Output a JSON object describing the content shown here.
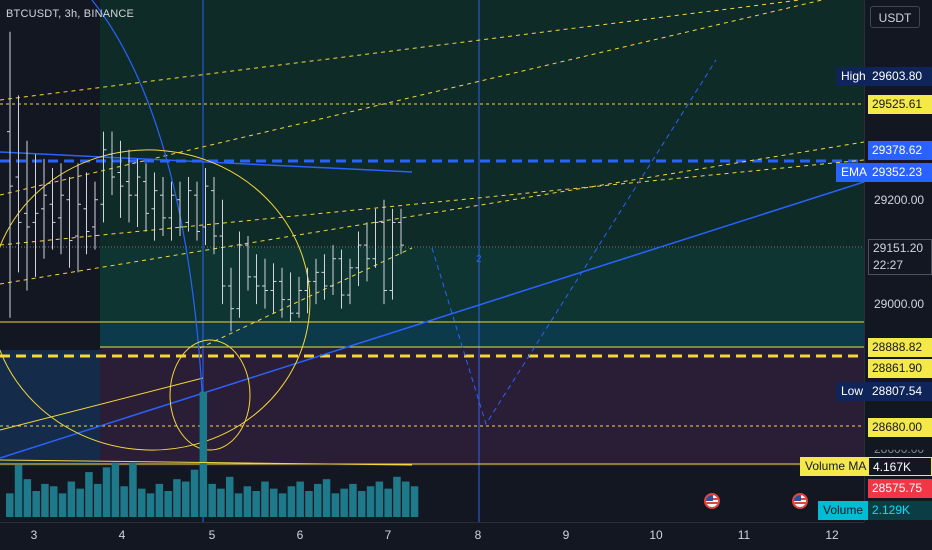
{
  "header": {
    "symbol": "BTCUSDT, 3h, BINANCE"
  },
  "currency": "USDT",
  "colors": {
    "background": "#131722",
    "accent_blue": "#2962ff",
    "yellow": "#f5d73b",
    "volume": "#1e7a8a",
    "red": "#f23645",
    "green_zone": "#0f3a33",
    "purple_zone": "#2c1d3a"
  },
  "axis_labels": {
    "high": {
      "name": "High",
      "value": "29603.80"
    },
    "level_1": "29525.61",
    "level_2": "29378.62",
    "ema": {
      "name": "EMA",
      "value": "29352.23"
    },
    "price_29200": "29200.00",
    "current": {
      "value": "29151.20",
      "countdown": "22:27"
    },
    "price_29000": "29000.00",
    "level_3": "28888.82",
    "level_4": "28861.90",
    "low": {
      "name": "Low",
      "value": "28807.54"
    },
    "level_5": "28680.00",
    "partial": "28600.00",
    "volume_ma": {
      "name": "Volume MA",
      "value": "4.167K"
    },
    "red_value": "28575.75",
    "volume": {
      "name": "Volume",
      "value": "2.129K"
    }
  },
  "time_labels": [
    "3",
    "4",
    "5",
    "6",
    "7",
    "8",
    "9",
    "10",
    "11",
    "12"
  ],
  "chart_data": {
    "type": "bar",
    "title": "BTCUSDT, 3h, BINANCE",
    "x_ticks": [
      "3",
      "4",
      "5",
      "6",
      "7",
      "8",
      "9",
      "10",
      "11",
      "12"
    ],
    "y_range": [
      28540,
      29690
    ],
    "grid": false,
    "ohlc_bars": [
      {
        "o": 29400,
        "h": 29620,
        "l": 28990,
        "c": 29280
      },
      {
        "o": 29300,
        "h": 29480,
        "l": 29090,
        "c": 29200
      },
      {
        "o": 29220,
        "h": 29380,
        "l": 29050,
        "c": 29190
      },
      {
        "o": 29200,
        "h": 29350,
        "l": 29080,
        "c": 29220
      },
      {
        "o": 29230,
        "h": 29340,
        "l": 29120,
        "c": 29260
      },
      {
        "o": 29240,
        "h": 29320,
        "l": 29140,
        "c": 29200
      },
      {
        "o": 29210,
        "h": 29330,
        "l": 29130,
        "c": 29260
      },
      {
        "o": 29250,
        "h": 29300,
        "l": 29100,
        "c": 29160
      },
      {
        "o": 29170,
        "h": 29330,
        "l": 29090,
        "c": 29240
      },
      {
        "o": 29230,
        "h": 29310,
        "l": 29130,
        "c": 29180
      },
      {
        "o": 29190,
        "h": 29290,
        "l": 29140,
        "c": 29250
      },
      {
        "o": 29240,
        "h": 29400,
        "l": 29200,
        "c": 29360
      },
      {
        "o": 29350,
        "h": 29400,
        "l": 29260,
        "c": 29300
      },
      {
        "o": 29310,
        "h": 29380,
        "l": 29210,
        "c": 29280
      },
      {
        "o": 29290,
        "h": 29360,
        "l": 29200,
        "c": 29260
      },
      {
        "o": 29260,
        "h": 29340,
        "l": 29190,
        "c": 29300
      },
      {
        "o": 29290,
        "h": 29330,
        "l": 29180,
        "c": 29220
      },
      {
        "o": 29230,
        "h": 29310,
        "l": 29160,
        "c": 29270
      },
      {
        "o": 29260,
        "h": 29300,
        "l": 29170,
        "c": 29210
      },
      {
        "o": 29210,
        "h": 29290,
        "l": 29160,
        "c": 29260
      },
      {
        "o": 29250,
        "h": 29290,
        "l": 29170,
        "c": 29190
      },
      {
        "o": 29200,
        "h": 29300,
        "l": 29180,
        "c": 29270
      },
      {
        "o": 29260,
        "h": 29290,
        "l": 29160,
        "c": 29180
      },
      {
        "o": 29190,
        "h": 29320,
        "l": 29150,
        "c": 29280
      },
      {
        "o": 29270,
        "h": 29300,
        "l": 29130,
        "c": 29170
      },
      {
        "o": 29170,
        "h": 29250,
        "l": 29020,
        "c": 29060
      },
      {
        "o": 29060,
        "h": 29100,
        "l": 28960,
        "c": 29010
      },
      {
        "o": 29010,
        "h": 29180,
        "l": 28990,
        "c": 29150
      },
      {
        "o": 29150,
        "h": 29170,
        "l": 29050,
        "c": 29080
      },
      {
        "o": 29080,
        "h": 29130,
        "l": 29020,
        "c": 29060
      },
      {
        "o": 29060,
        "h": 29120,
        "l": 29010,
        "c": 29050
      },
      {
        "o": 29050,
        "h": 29110,
        "l": 29000,
        "c": 29070
      },
      {
        "o": 29070,
        "h": 29100,
        "l": 28990,
        "c": 29030
      },
      {
        "o": 29030,
        "h": 29090,
        "l": 28980,
        "c": 29000
      },
      {
        "o": 29000,
        "h": 29080,
        "l": 28990,
        "c": 29050
      },
      {
        "o": 29050,
        "h": 29100,
        "l": 29000,
        "c": 29070
      },
      {
        "o": 29070,
        "h": 29120,
        "l": 29020,
        "c": 29090
      },
      {
        "o": 29090,
        "h": 29130,
        "l": 29030,
        "c": 29060
      },
      {
        "o": 29060,
        "h": 29150,
        "l": 29040,
        "c": 29120
      },
      {
        "o": 29120,
        "h": 29140,
        "l": 29010,
        "c": 29040
      },
      {
        "o": 29040,
        "h": 29120,
        "l": 29020,
        "c": 29100
      },
      {
        "o": 29100,
        "h": 29180,
        "l": 29060,
        "c": 29150
      },
      {
        "o": 29150,
        "h": 29200,
        "l": 29070,
        "c": 29120
      },
      {
        "o": 29120,
        "h": 29230,
        "l": 29100,
        "c": 29200
      },
      {
        "o": 29200,
        "h": 29250,
        "l": 29020,
        "c": 29050
      },
      {
        "o": 29050,
        "h": 29230,
        "l": 29030,
        "c": 29200
      },
      {
        "o": 29200,
        "h": 29230,
        "l": 29130,
        "c": 29150
      }
    ],
    "volume": [
      {
        "v": 1.0
      },
      {
        "v": 2.2
      },
      {
        "v": 1.6
      },
      {
        "v": 1.1
      },
      {
        "v": 1.4
      },
      {
        "v": 1.3
      },
      {
        "v": 1.0
      },
      {
        "v": 1.5
      },
      {
        "v": 1.2
      },
      {
        "v": 1.9
      },
      {
        "v": 1.4
      },
      {
        "v": 2.1
      },
      {
        "v": 2.3
      },
      {
        "v": 1.3
      },
      {
        "v": 2.3
      },
      {
        "v": 1.2
      },
      {
        "v": 1.0
      },
      {
        "v": 1.4
      },
      {
        "v": 1.1
      },
      {
        "v": 1.6
      },
      {
        "v": 1.5
      },
      {
        "v": 2.0
      },
      {
        "v": 5.3
      },
      {
        "v": 1.4
      },
      {
        "v": 1.2
      },
      {
        "v": 1.7
      },
      {
        "v": 1.0
      },
      {
        "v": 1.3
      },
      {
        "v": 1.1
      },
      {
        "v": 1.5
      },
      {
        "v": 1.2
      },
      {
        "v": 1.0
      },
      {
        "v": 1.3
      },
      {
        "v": 1.5
      },
      {
        "v": 1.1
      },
      {
        "v": 1.4
      },
      {
        "v": 1.6
      },
      {
        "v": 1.0
      },
      {
        "v": 1.2
      },
      {
        "v": 1.4
      },
      {
        "v": 1.1
      },
      {
        "v": 1.3
      },
      {
        "v": 1.5
      },
      {
        "v": 1.2
      },
      {
        "v": 1.7
      },
      {
        "v": 1.5
      },
      {
        "v": 1.3
      }
    ],
    "levels": [
      29525.61,
      29378.62,
      29352.23,
      28888.82,
      28861.9,
      28807.54,
      28680.0
    ]
  }
}
